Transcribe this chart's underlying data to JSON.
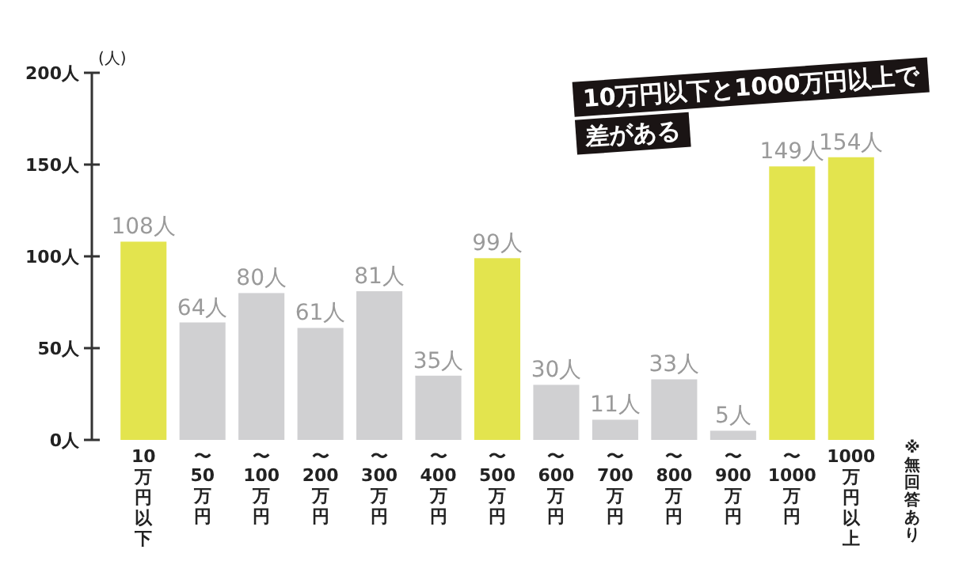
{
  "chart_data": {
    "type": "bar",
    "title": "10万円以下と1000万円以上で差がある",
    "ylabel": "(人)",
    "categories": [
      "10万円以下",
      "〜50万円",
      "〜100万円",
      "〜200万円",
      "〜300万円",
      "〜400万円",
      "〜500万円",
      "〜600万円",
      "〜700万円",
      "〜800万円",
      "〜900万円",
      "〜1000万円",
      "1000万円以上"
    ],
    "values": [
      108,
      64,
      80,
      61,
      81,
      35,
      99,
      30,
      11,
      33,
      5,
      149,
      154
    ],
    "colors": [
      "#e3e44e",
      "#d0d0d2",
      "#d0d0d2",
      "#d0d0d2",
      "#d0d0d2",
      "#d0d0d2",
      "#e3e44e",
      "#d0d0d2",
      "#d0d0d2",
      "#d0d0d2",
      "#d0d0d2",
      "#e3e44e",
      "#e3e44e"
    ],
    "value_labels": [
      "108人",
      "64人",
      "80人",
      "61人",
      "81人",
      "35人",
      "99人",
      "30人",
      "11人",
      "33人",
      "5人",
      "149人",
      "154人"
    ],
    "ylim": [
      0,
      200
    ],
    "yticks": [
      {
        "value": 0,
        "label": "0人"
      },
      {
        "value": 50,
        "label": "50人"
      },
      {
        "value": 100,
        "label": "100人"
      },
      {
        "value": 150,
        "label": "150人"
      },
      {
        "value": 200,
        "label": "200人"
      }
    ],
    "annotations": [
      "※無回答あり"
    ],
    "grid": false
  }
}
